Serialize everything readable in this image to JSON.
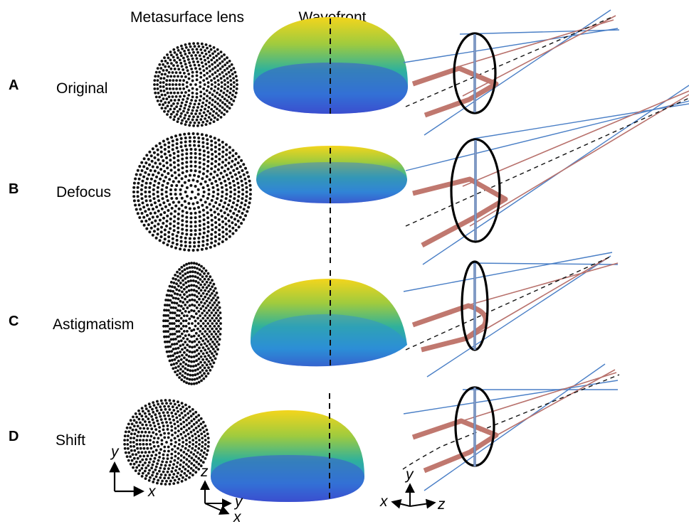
{
  "headers": {
    "lens": "Metasurface lens",
    "wavefront": "Wavefront"
  },
  "rows": [
    {
      "letter": "A",
      "name": "Original"
    },
    {
      "letter": "B",
      "name": "Defocus"
    },
    {
      "letter": "C",
      "name": "Astigmatism"
    },
    {
      "letter": "D",
      "name": "Shift"
    }
  ],
  "axes": {
    "lens": {
      "horizontal": "x",
      "vertical": "y"
    },
    "wavefront": {
      "vertical": "z",
      "depth": "y",
      "front": "x"
    },
    "ray": {
      "left": "x",
      "vertical": "y",
      "right": "z"
    }
  },
  "colors": {
    "blue_ray": "#4a7fc6",
    "red_ray": "#b8716c",
    "thick_beam": "#c0786f",
    "lens_axis": "#5f7fb2",
    "dashed": "#111111",
    "wavefront_top": "#f3d51c",
    "wavefront_mid": "#4bb58a",
    "wavefront_bottom": "#3b43c9"
  }
}
